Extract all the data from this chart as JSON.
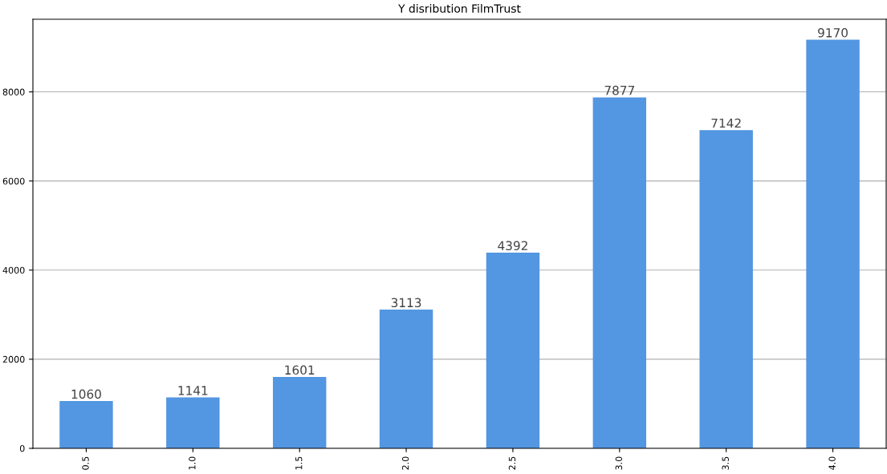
{
  "chart_data": {
    "type": "bar",
    "title": "Y disribution FilmTrust",
    "categories": [
      "0.5",
      "1.0",
      "1.5",
      "2.0",
      "2.5",
      "3.0",
      "3.5",
      "4.0"
    ],
    "values": [
      1060,
      1141,
      1601,
      3113,
      4392,
      7877,
      7142,
      9170
    ],
    "color": "#5396e1",
    "ylim": [
      0,
      9630
    ],
    "yticks": [
      0,
      2000,
      4000,
      6000,
      8000
    ],
    "grid": "y",
    "data_labels": true
  }
}
